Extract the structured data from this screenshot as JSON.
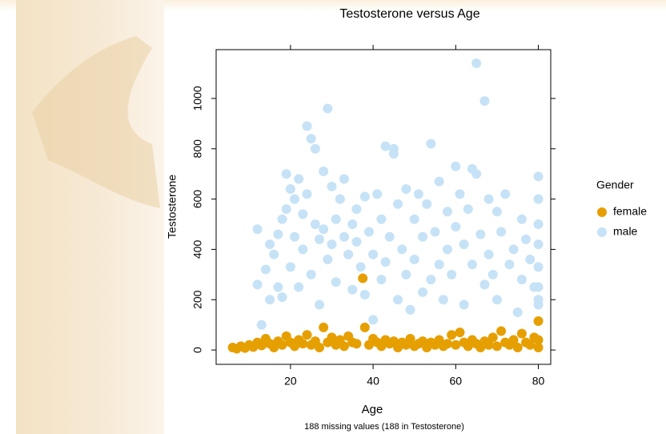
{
  "chart_data": {
    "type": "scatter",
    "title": "Testosterone versus Age",
    "x_label": "Age",
    "y_label": "Testosterone",
    "note": "188 missing values (188 in Testosterone)",
    "legend_title": "Gender",
    "legend_position": "right",
    "xlim": [
      2,
      83
    ],
    "ylim": [
      -57,
      1194
    ],
    "xticks": [
      20,
      40,
      60,
      80
    ],
    "yticks": [
      0,
      200,
      400,
      600,
      800,
      1000
    ],
    "series": [
      {
        "name": "female",
        "color": "#e69f00",
        "x": [
          6,
          7,
          8,
          9,
          10,
          11,
          12,
          13,
          14,
          15,
          16,
          17,
          18,
          19,
          20,
          21,
          22,
          23,
          24,
          25,
          26,
          27,
          28,
          29,
          30,
          31,
          32,
          33,
          34,
          35,
          36,
          37.5,
          38,
          39,
          40,
          41,
          42,
          43,
          44,
          45,
          46,
          47,
          48,
          49,
          50,
          51,
          52,
          53,
          54,
          55,
          56,
          57,
          58,
          59,
          60,
          61,
          62,
          63,
          64,
          65,
          66,
          67,
          68,
          69,
          70,
          71,
          72,
          73,
          74,
          75,
          76,
          77,
          78,
          79,
          80,
          80,
          80
        ],
        "values": [
          10,
          5,
          15,
          8,
          20,
          12,
          30,
          18,
          45,
          25,
          10,
          35,
          20,
          55,
          30,
          15,
          40,
          25,
          60,
          20,
          35,
          10,
          90,
          30,
          50,
          20,
          40,
          15,
          55,
          30,
          25,
          285,
          90,
          20,
          45,
          30,
          15,
          40,
          25,
          35,
          10,
          30,
          20,
          45,
          15,
          25,
          35,
          10,
          30,
          20,
          40,
          15,
          25,
          60,
          20,
          70,
          30,
          15,
          40,
          25,
          10,
          35,
          20,
          50,
          15,
          75,
          30,
          20,
          40,
          10,
          65,
          30,
          20,
          50,
          115,
          40,
          10
        ]
      },
      {
        "name": "male",
        "color": "#c6e2f6",
        "x": [
          12,
          12,
          13,
          14,
          15,
          15,
          16,
          17,
          17,
          18,
          18,
          19,
          19,
          20,
          20,
          21,
          21,
          22,
          22,
          23,
          23,
          24,
          24,
          25,
          25,
          26,
          26,
          27,
          27,
          28,
          28,
          29,
          29,
          30,
          30,
          31,
          31,
          32,
          33,
          33,
          34,
          35,
          35,
          36,
          36,
          37,
          38,
          38,
          39,
          40,
          40,
          41,
          42,
          42,
          43,
          43,
          44,
          45,
          45,
          46,
          46,
          47,
          48,
          48,
          49,
          50,
          50,
          51,
          52,
          52,
          53,
          54,
          54,
          55,
          56,
          56,
          57,
          58,
          58,
          59,
          60,
          60,
          61,
          62,
          62,
          63,
          64,
          64,
          65,
          65,
          66,
          67,
          67,
          68,
          68,
          69,
          70,
          70,
          71,
          72,
          73,
          74,
          75,
          76,
          76,
          77,
          78,
          79,
          80,
          80,
          80,
          80,
          80,
          80,
          80,
          80
        ],
        "values": [
          260,
          480,
          100,
          320,
          200,
          420,
          380,
          460,
          250,
          520,
          210,
          700,
          560,
          640,
          330,
          600,
          450,
          680,
          250,
          540,
          400,
          890,
          620,
          840,
          300,
          800,
          500,
          440,
          180,
          710,
          480,
          960,
          360,
          650,
          420,
          520,
          270,
          600,
          680,
          450,
          380,
          500,
          240,
          430,
          560,
          330,
          610,
          220,
          470,
          120,
          380,
          620,
          280,
          520,
          810,
          350,
          450,
          800,
          780,
          200,
          580,
          400,
          640,
          300,
          160,
          520,
          360,
          620,
          230,
          450,
          580,
          820,
          280,
          470,
          670,
          340,
          200,
          550,
          400,
          300,
          730,
          490,
          620,
          180,
          420,
          560,
          720,
          340,
          1140,
          700,
          460,
          990,
          260,
          600,
          380,
          300,
          550,
          200,
          470,
          620,
          340,
          400,
          150,
          520,
          280,
          440,
          360,
          250,
          690,
          600,
          500,
          420,
          330,
          250,
          180,
          200
        ]
      }
    ]
  }
}
